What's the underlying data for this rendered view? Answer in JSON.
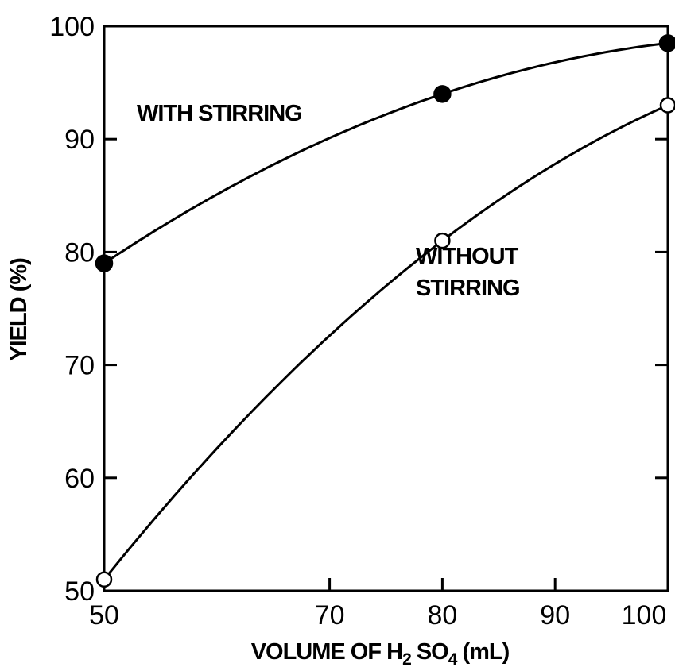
{
  "chart_data": {
    "type": "line",
    "title": "",
    "xlabel": {
      "prefix": "VOLUME OF H",
      "sub1": "2",
      "mid": " SO",
      "sub2": "4",
      "suffix": " (mL)"
    },
    "ylabel": "YIELD (%)",
    "xlim": [
      50,
      100
    ],
    "ylim": [
      50,
      100
    ],
    "x_ticks": [
      50,
      70,
      80,
      90,
      100
    ],
    "y_ticks": [
      50,
      60,
      70,
      80,
      90,
      100
    ],
    "grid": false,
    "legend": "none (inline annotations)",
    "series": [
      {
        "name": "WITH STIRRING",
        "marker": "filled-circle",
        "x": [
          50,
          80,
          100
        ],
        "y": [
          79,
          94,
          98.5
        ]
      },
      {
        "name": "WITHOUT STIRRING",
        "name_lines": [
          "WITHOUT",
          "STIRRING"
        ],
        "marker": "open-circle",
        "x": [
          50,
          80,
          100
        ],
        "y": [
          51,
          81,
          93
        ]
      }
    ]
  }
}
